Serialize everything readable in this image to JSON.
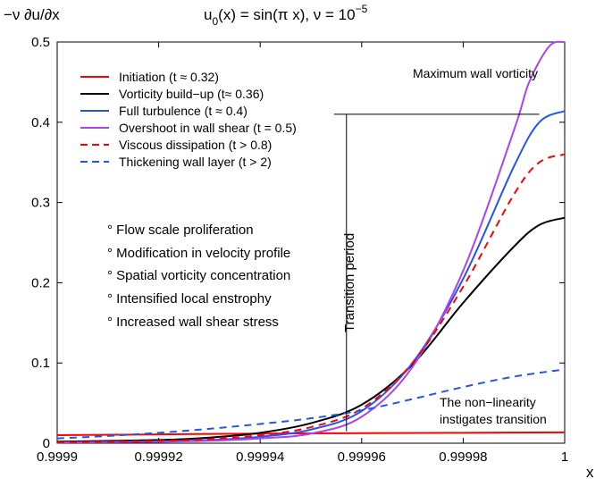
{
  "chart_data": {
    "type": "line",
    "title_main": "u",
    "title_sub": "0",
    "title_mid": "(x) = sin(π x), ν = 10",
    "title_sup": "−5",
    "ylabel": "−ν ∂u/∂x",
    "xlabel": "x",
    "xlim": [
      0.9999,
      1.0
    ],
    "ylim": [
      0,
      0.5
    ],
    "xticks": [
      0.9999,
      0.99992,
      0.99994,
      0.99996,
      0.99998,
      1.0
    ],
    "xtick_labels": [
      "0.9999",
      "0.99992",
      "0.99994",
      "0.99996",
      "0.99998",
      "1"
    ],
    "yticks": [
      0,
      0.1,
      0.2,
      0.3,
      0.4,
      0.5
    ],
    "ytick_labels": [
      "0",
      "0.1",
      "0.2",
      "0.3",
      "0.4",
      "0.5"
    ],
    "series": [
      {
        "name": "Initiation (t ≈ 0.32)",
        "color": "#ff0000",
        "dash": "solid",
        "x": [
          0.9999,
          0.99992,
          0.99994,
          0.99996,
          0.99998,
          1.0
        ],
        "y": [
          0.01,
          0.011,
          0.012,
          0.0125,
          0.013,
          0.0135
        ]
      },
      {
        "name": "Vorticity build−up (t≈ 0.36)",
        "color": "#000000",
        "dash": "solid",
        "x": [
          0.9999,
          0.99992,
          0.99993,
          0.99994,
          0.99995,
          0.99996,
          0.99997,
          0.99998,
          0.99999,
          0.999995,
          1.0
        ],
        "y": [
          0.002,
          0.004,
          0.007,
          0.013,
          0.025,
          0.048,
          0.098,
          0.175,
          0.245,
          0.272,
          0.281
        ]
      },
      {
        "name": "Full turbulence (t ≈ 0.4)",
        "color": "#2255ee",
        "dash": "solid",
        "x": [
          0.9999,
          0.99992,
          0.99993,
          0.99994,
          0.99995,
          0.99996,
          0.99997,
          0.99998,
          0.99999,
          0.999995,
          1.0
        ],
        "y": [
          0.001,
          0.002,
          0.004,
          0.008,
          0.017,
          0.04,
          0.1,
          0.205,
          0.345,
          0.4,
          0.414
        ]
      },
      {
        "name": "Overshoot in wall shear (t = 0.5)",
        "color": "#b040f0",
        "dash": "solid",
        "x": [
          0.9999,
          0.99992,
          0.99993,
          0.99994,
          0.99995,
          0.99996,
          0.99997,
          0.99998,
          0.99999,
          0.999993,
          0.999997,
          1.0
        ],
        "y": [
          0.001,
          0.002,
          0.003,
          0.006,
          0.012,
          0.033,
          0.095,
          0.215,
          0.39,
          0.45,
          0.495,
          0.5
        ]
      },
      {
        "name": "Viscous dissipation (t > 0.8)",
        "color": "#ff0000",
        "dash": "dashed",
        "x": [
          0.9999,
          0.99992,
          0.99993,
          0.99994,
          0.99995,
          0.99996,
          0.99997,
          0.99998,
          0.99999,
          0.999995,
          1.0
        ],
        "y": [
          0.001,
          0.003,
          0.005,
          0.01,
          0.02,
          0.043,
          0.1,
          0.195,
          0.31,
          0.35,
          0.36
        ]
      },
      {
        "name": "Thickening wall layer (t > 2)",
        "color": "#2255ee",
        "dash": "dashed",
        "x": [
          0.9999,
          0.99991,
          0.99992,
          0.99993,
          0.99994,
          0.99995,
          0.99996,
          0.99997,
          0.99998,
          0.99999,
          1.0
        ],
        "y": [
          0.006,
          0.009,
          0.013,
          0.018,
          0.024,
          0.031,
          0.041,
          0.055,
          0.07,
          0.083,
          0.092
        ]
      }
    ],
    "annotations": {
      "max_wall": "Maximum wall vorticity",
      "transition": "Transition period",
      "nonlin_1": "The non−linearity",
      "nonlin_2": "instigates transition",
      "max_marker_y": 0.41,
      "transition_x": 0.999957
    },
    "notes": [
      "Flow scale proliferation",
      "Modification in velocity profile",
      "Spatial vorticity concentration",
      "Intensified local enstrophy",
      "Increased wall shear stress"
    ],
    "bullet": "°"
  }
}
